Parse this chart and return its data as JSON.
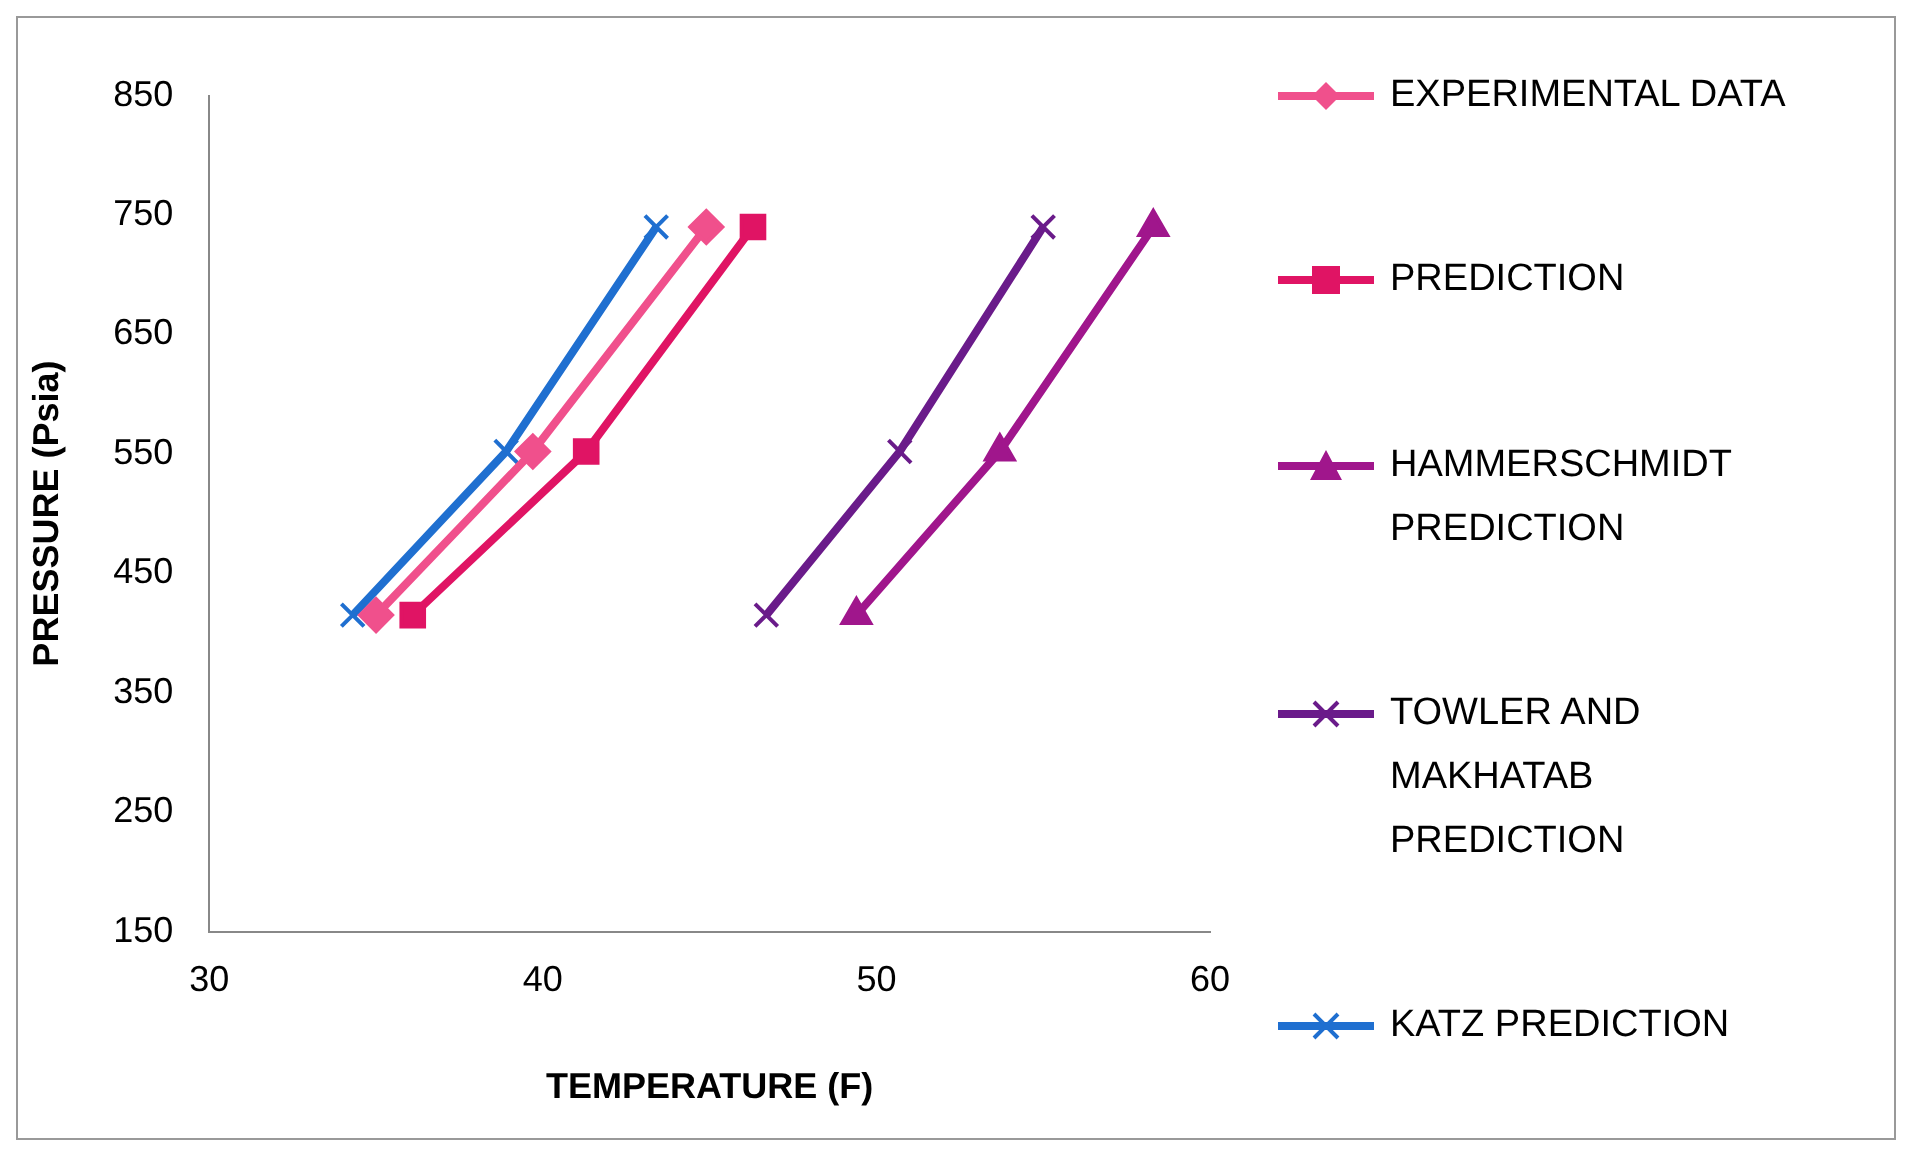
{
  "chart_data": {
    "type": "line",
    "xlabel": "TEMPERATURE (F)",
    "ylabel": "PRESSURE (Psia)",
    "xlim": [
      30,
      60
    ],
    "xticks": [
      30,
      40,
      50,
      60
    ],
    "ylim": [
      150,
      850
    ],
    "yticks": [
      150,
      250,
      350,
      450,
      550,
      650,
      750,
      850
    ],
    "grid": false,
    "legend": "right",
    "series": [
      {
        "name": "EXPERIMENTAL DATA",
        "color": "#f0508c",
        "marker": "diamond",
        "x": [
          35,
          39.7,
          44.9
        ],
        "values": [
          415,
          552,
          740
        ]
      },
      {
        "name": "PREDICTION",
        "color": "#e01464",
        "marker": "square",
        "x": [
          36.1,
          41.3,
          46.3
        ],
        "values": [
          415,
          552,
          740
        ]
      },
      {
        "name": "HAMMERSCHMIDT PREDICTION",
        "color": "#a0168c",
        "marker": "triangle",
        "x": [
          49.4,
          53.7,
          58.3
        ],
        "values": [
          415,
          552,
          740
        ]
      },
      {
        "name": "TOWLER AND MAKHATAB PREDICTION",
        "color": "#6a1b8a",
        "marker": "cross",
        "x": [
          46.7,
          50.7,
          55
        ],
        "values": [
          415,
          552,
          740
        ]
      },
      {
        "name": "KATZ PREDICTION",
        "color": "#1f6fd0",
        "marker": "cross",
        "x": [
          34.3,
          38.9,
          43.4
        ],
        "values": [
          415,
          552,
          740
        ]
      }
    ]
  }
}
